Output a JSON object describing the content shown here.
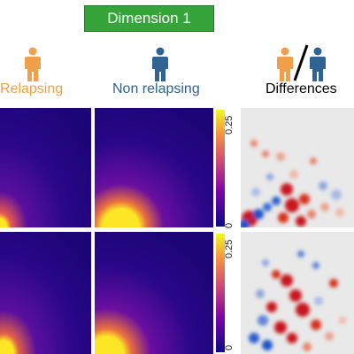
{
  "banner": {
    "label": "Dimension 1"
  },
  "columns": {
    "relapsing": {
      "label": "Relapsing",
      "color": "#f0a04b"
    },
    "non_relapsing": {
      "label": "Non relapsing",
      "color": "#2f6393"
    },
    "differences": {
      "label": "Differences",
      "color": "#000000"
    }
  },
  "colorbar": {
    "max_label": "0.25",
    "min_label": "0"
  },
  "colors": {
    "heat_low": "#1c0577",
    "heat_mid": "#6a0fa0",
    "heat_high": "#fde724",
    "diff_pos": "#c8141e",
    "diff_neg": "#1f52c8",
    "diff_bg": "#e9e9e9"
  },
  "icons": [
    "person-orange-icon",
    "person-blue-icon",
    "person-pair-icon"
  ]
}
